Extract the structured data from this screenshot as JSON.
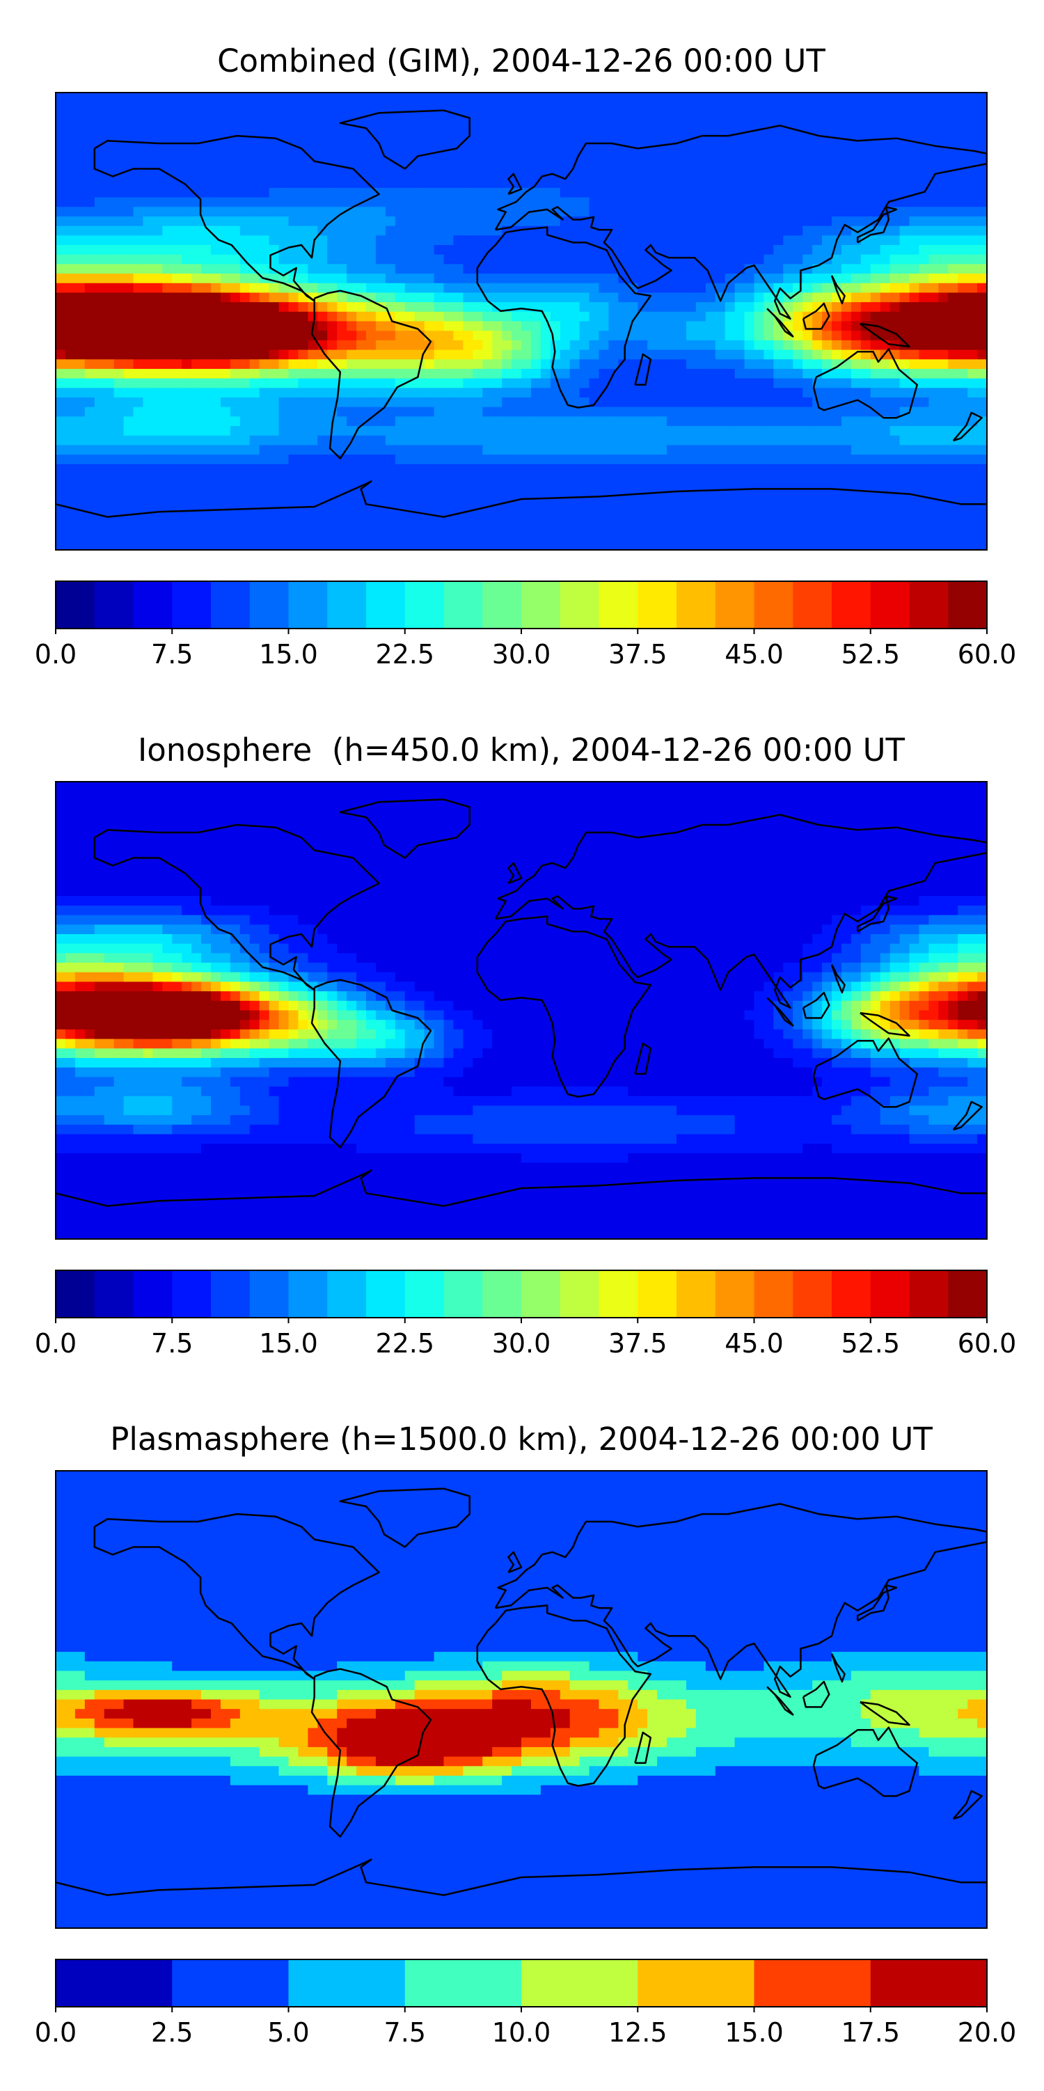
{
  "chart_data": [
    {
      "type": "heatmap",
      "title": "Combined (GIM), 2004-12-26 00:00 UT",
      "colorbar": {
        "ticks": [
          "0.0",
          "7.5",
          "15.0",
          "22.5",
          "30.0",
          "37.5",
          "45.0",
          "52.5",
          "60.0"
        ],
        "range": [
          0,
          60
        ],
        "levels": 24,
        "colormap": "jet"
      },
      "blobs": [
        {
          "lon": -140,
          "lat": -2,
          "sx": 38,
          "sy": 12,
          "value": 57
        },
        {
          "lon": -120,
          "lat": -4,
          "sx": 30,
          "sy": 9,
          "value": 45
        },
        {
          "lon": 178,
          "lat": 2,
          "sx": 34,
          "sy": 13,
          "value": 44
        },
        {
          "lon": 145,
          "lat": -5,
          "sx": 26,
          "sy": 11,
          "value": 34
        },
        {
          "lon": 112,
          "lat": 0,
          "sx": 24,
          "sy": 11,
          "value": 27
        },
        {
          "lon": -80,
          "lat": -5,
          "sx": 40,
          "sy": 13,
          "value": 28
        },
        {
          "lon": -40,
          "lat": -8,
          "sx": 26,
          "sy": 12,
          "value": 26
        },
        {
          "lon": -10,
          "lat": -12,
          "sx": 22,
          "sy": 10,
          "value": 23
        },
        {
          "lon": 20,
          "lat": 5,
          "sx": 18,
          "sy": 9,
          "value": 18
        },
        {
          "lon": 60,
          "lat": -5,
          "sx": 16,
          "sy": 8,
          "value": 15
        },
        {
          "lon": -120,
          "lat": 32,
          "sx": 46,
          "sy": 10,
          "value": 20
        },
        {
          "lon": -130,
          "lat": -40,
          "sx": 30,
          "sy": 9,
          "value": 20
        },
        {
          "lon": 20,
          "lat": -45,
          "sx": 80,
          "sy": 8,
          "value": 17
        },
        {
          "lon": 150,
          "lat": 30,
          "sx": 30,
          "sy": 8,
          "value": 17
        },
        {
          "lon": 160,
          "lat": -45,
          "sx": 32,
          "sy": 8,
          "value": 16
        },
        {
          "lon": -20,
          "lat": 45,
          "sx": 50,
          "sy": 8,
          "value": 14
        }
      ],
      "background": 10
    },
    {
      "type": "heatmap",
      "title": "Ionosphere  (h=450.0 km), 2004-12-26 00:00 UT",
      "colorbar": {
        "ticks": [
          "0.0",
          "7.5",
          "15.0",
          "22.5",
          "30.0",
          "37.5",
          "45.0",
          "52.5",
          "60.0"
        ],
        "range": [
          0,
          60
        ],
        "levels": 24,
        "colormap": "jet"
      },
      "blobs": [
        {
          "lon": -140,
          "lat": -2,
          "sx": 36,
          "sy": 12,
          "value": 46
        },
        {
          "lon": -135,
          "lat": -2,
          "sx": 22,
          "sy": 7,
          "value": 45
        },
        {
          "lon": 180,
          "lat": 3,
          "sx": 30,
          "sy": 12,
          "value": 37
        },
        {
          "lon": 140,
          "lat": -3,
          "sx": 22,
          "sy": 10,
          "value": 26
        },
        {
          "lon": -85,
          "lat": -5,
          "sx": 22,
          "sy": 10,
          "value": 22
        },
        {
          "lon": -50,
          "lat": -12,
          "sx": 18,
          "sy": 8,
          "value": 18
        },
        {
          "lon": -140,
          "lat": 28,
          "sx": 30,
          "sy": 8,
          "value": 17
        },
        {
          "lon": -140,
          "lat": -38,
          "sx": 28,
          "sy": 8,
          "value": 17
        },
        {
          "lon": 20,
          "lat": -45,
          "sx": 70,
          "sy": 8,
          "value": 12
        },
        {
          "lon": 160,
          "lat": 28,
          "sx": 24,
          "sy": 8,
          "value": 14
        },
        {
          "lon": 160,
          "lat": -40,
          "sx": 24,
          "sy": 8,
          "value": 14
        }
      ],
      "background": 6
    },
    {
      "type": "heatmap",
      "title": "Plasmasphere (h=1500.0 km), 2004-12-26 00:00 UT",
      "colorbar": {
        "ticks": [
          "0.0",
          "2.5",
          "5.0",
          "7.5",
          "10.0",
          "12.5",
          "15.0",
          "17.5",
          "20.0"
        ],
        "range": [
          0,
          20
        ],
        "levels": 8,
        "colormap": "jet"
      },
      "blobs": [
        {
          "lon": -60,
          "lat": -10,
          "sx": 120,
          "sy": 14,
          "value": 11
        },
        {
          "lon": -45,
          "lat": -18,
          "sx": 26,
          "sy": 10,
          "value": 15
        },
        {
          "lon": -140,
          "lat": -5,
          "sx": 24,
          "sy": 6,
          "value": 13
        },
        {
          "lon": 10,
          "lat": -5,
          "sx": 35,
          "sy": 14,
          "value": 11
        },
        {
          "lon": 150,
          "lat": 0,
          "sx": 40,
          "sy": 14,
          "value": 8
        }
      ],
      "background": 2.5
    }
  ]
}
